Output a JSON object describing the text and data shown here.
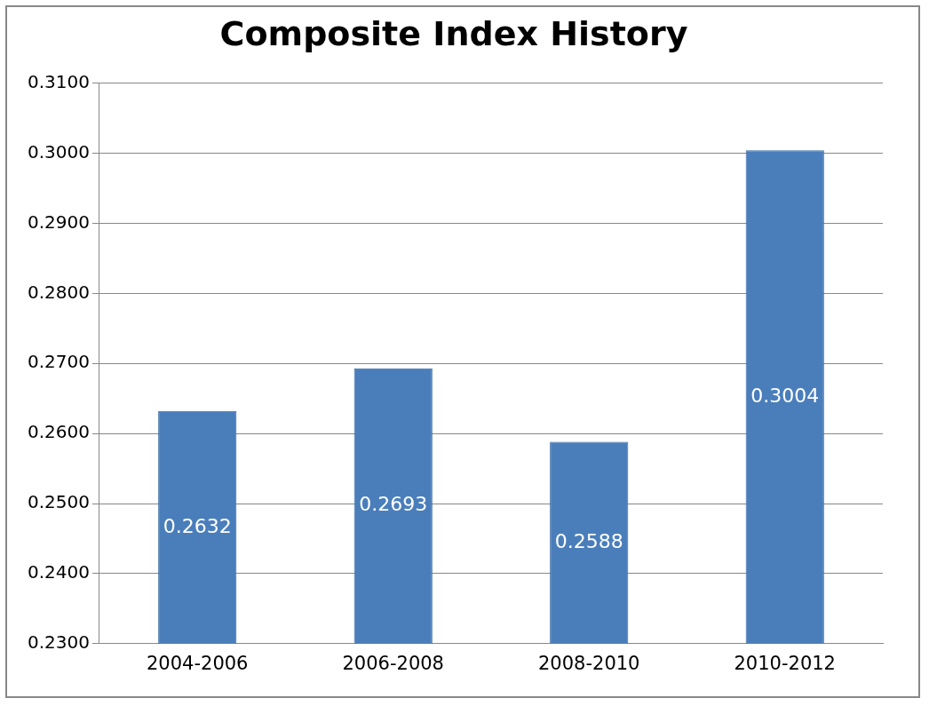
{
  "chart_data": {
    "type": "bar",
    "title": "Composite Index History",
    "categories": [
      "2004-2006",
      "2006-2008",
      "2008-2010",
      "2010-2012"
    ],
    "values": [
      0.2632,
      0.2693,
      0.2588,
      0.3004
    ],
    "color": "#4a7ebb",
    "ylim": [
      0.23,
      0.31
    ],
    "yticks": [
      {
        "value": 0.23,
        "label": "0.2300"
      },
      {
        "value": 0.24,
        "label": "0.2400"
      },
      {
        "value": 0.25,
        "label": "0.2500"
      },
      {
        "value": 0.26,
        "label": "0.2600"
      },
      {
        "value": 0.27,
        "label": "0.2700"
      },
      {
        "value": 0.28,
        "label": "0.2800"
      },
      {
        "value": 0.29,
        "label": "0.2900"
      },
      {
        "value": 0.3,
        "label": "0.3000"
      },
      {
        "value": 0.31,
        "label": "0.3100"
      }
    ],
    "grid": "y",
    "data_labels": true
  }
}
